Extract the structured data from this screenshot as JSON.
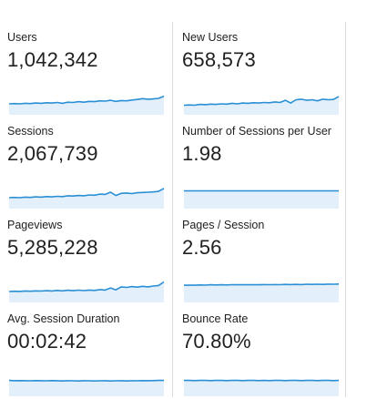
{
  "colors": {
    "line": "#2a8fd4",
    "fill": "#e3f0fb",
    "divider": "#dadce0"
  },
  "metrics": [
    {
      "label": "Users",
      "value": "1,042,342",
      "trend": [
        8,
        8.2,
        8,
        8.4,
        8.2,
        8.6,
        8.4,
        8.8,
        8.6,
        9,
        8.4,
        9.2,
        9,
        9.6,
        9.2,
        9.8,
        9.6,
        10.2,
        10,
        10.6,
        9.8,
        10.4,
        10.2,
        10.8,
        11.2,
        11.8,
        11.4,
        11.6,
        12,
        13.6
      ]
    },
    {
      "label": "New Users",
      "value": "658,573",
      "trend": [
        7,
        7.2,
        7,
        7.6,
        7.4,
        7.8,
        7.6,
        8,
        7.8,
        8.4,
        8,
        8.6,
        8.4,
        8.8,
        8.6,
        9,
        8.8,
        9.4,
        9,
        10.6,
        8.6,
        11,
        11.4,
        10.6,
        11,
        10.2,
        11.4,
        11,
        11.2,
        13.4
      ]
    },
    {
      "label": "Sessions",
      "value": "2,067,739",
      "trend": [
        8,
        8.2,
        8,
        8.4,
        8.2,
        8.6,
        8.4,
        8.8,
        8.6,
        9,
        8.8,
        9.4,
        9.2,
        9.6,
        9.4,
        10,
        9.8,
        10.6,
        10.4,
        12,
        9.6,
        11.2,
        11.4,
        11,
        11.6,
        11.8,
        12,
        12.2,
        12.6,
        14.8
      ]
    },
    {
      "label": "Number of Sessions per User",
      "value": "1.98",
      "trend": [
        13,
        13,
        13,
        13,
        13,
        13,
        13,
        13,
        13,
        13,
        13,
        13,
        13,
        13,
        13,
        13,
        13,
        13,
        13,
        13,
        13,
        13,
        13,
        13,
        13,
        13,
        13,
        13,
        13,
        13
      ]
    },
    {
      "label": "Pageviews",
      "value": "5,285,228",
      "trend": [
        8,
        8.2,
        8.1,
        8.4,
        8.2,
        8.5,
        8.3,
        8.6,
        8.4,
        8.8,
        8.5,
        8.9,
        8.6,
        9,
        8.7,
        9.1,
        8.8,
        9.4,
        9.1,
        10.6,
        9.2,
        11.4,
        11,
        11.6,
        11.2,
        11.8,
        11.4,
        12,
        12.4,
        15
      ]
    },
    {
      "label": "Pages / Session",
      "value": "2.56",
      "trend": [
        12.6,
        12.7,
        12.6,
        12.8,
        12.7,
        12.9,
        12.8,
        12.9,
        12.8,
        13,
        12.9,
        13,
        12.9,
        13,
        12.9,
        13.1,
        13,
        13.1,
        13,
        13.2,
        13.1,
        13.2,
        13.1,
        13.3,
        13.2,
        13.3,
        13.2,
        13.4,
        13.3,
        13.5
      ]
    },
    {
      "label": "Avg. Session Duration",
      "value": "00:02:42",
      "trend": [
        11.6,
        11.4,
        11.5,
        11.4,
        11.3,
        11.5,
        11.4,
        11.3,
        11.5,
        11.4,
        11.2,
        11.4,
        11.3,
        11.2,
        11.4,
        11.3,
        11.2,
        11.3,
        11.4,
        11.2,
        11.3,
        11.4,
        11.2,
        11.4,
        11.3,
        11.5,
        11.4,
        11.5,
        11.6,
        11.6
      ]
    },
    {
      "label": "Bounce Rate",
      "value": "70.80%",
      "trend": [
        11.6,
        11.6,
        11.5,
        11.6,
        11.6,
        11.5,
        11.6,
        11.6,
        11.5,
        11.6,
        11.6,
        11.5,
        11.6,
        11.6,
        11.5,
        11.6,
        11.5,
        11.6,
        11.6,
        11.5,
        11.6,
        11.6,
        11.5,
        11.6,
        11.6,
        11.5,
        11.6,
        11.6,
        11.5,
        11.6
      ]
    }
  ]
}
